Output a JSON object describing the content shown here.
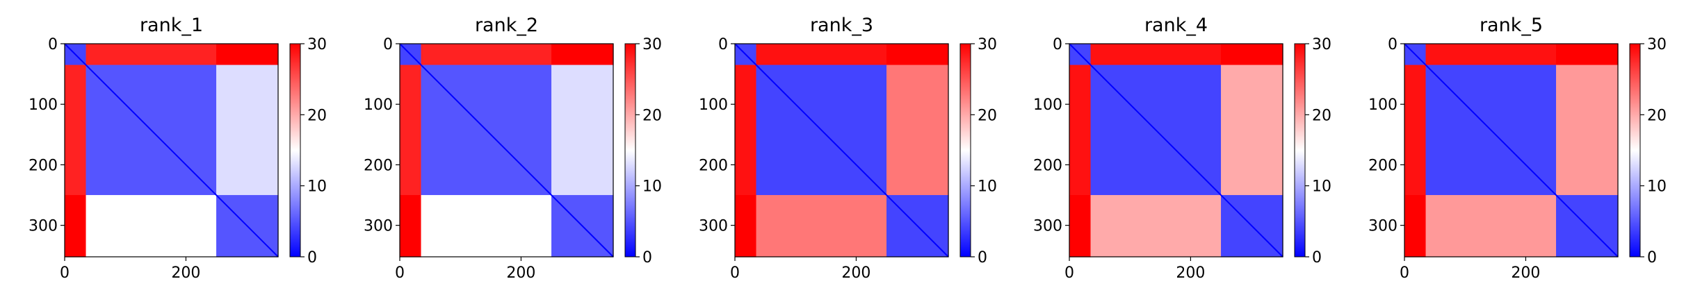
{
  "chart_data": [
    {
      "type": "heatmap",
      "title": "rank_1",
      "xticks": [
        0,
        200
      ],
      "yticks": [
        0,
        100,
        200,
        300
      ],
      "xlim": [
        0,
        352
      ],
      "ylim": [
        352,
        0
      ],
      "colorbar": {
        "ticks": [
          0,
          10,
          20,
          30
        ],
        "range": [
          0,
          30
        ],
        "colormap": "bwr"
      },
      "domains": [
        [
          0,
          35
        ],
        [
          35,
          250
        ],
        [
          250,
          352
        ]
      ],
      "block_values": [
        [
          4,
          28,
          30
        ],
        [
          28,
          5,
          13
        ],
        [
          30,
          15,
          5
        ]
      ]
    },
    {
      "type": "heatmap",
      "title": "rank_2",
      "xticks": [
        0,
        200
      ],
      "yticks": [
        0,
        100,
        200,
        300
      ],
      "xlim": [
        0,
        352
      ],
      "ylim": [
        352,
        0
      ],
      "colorbar": {
        "ticks": [
          0,
          10,
          20,
          30
        ],
        "range": [
          0,
          30
        ],
        "colormap": "bwr"
      },
      "domains": [
        [
          0,
          35
        ],
        [
          35,
          250
        ],
        [
          250,
          352
        ]
      ],
      "block_values": [
        [
          4,
          28,
          30
        ],
        [
          28,
          5,
          13
        ],
        [
          30,
          15,
          5
        ]
      ]
    },
    {
      "type": "heatmap",
      "title": "rank_3",
      "xticks": [
        0,
        200
      ],
      "yticks": [
        0,
        100,
        200,
        300
      ],
      "xlim": [
        0,
        352
      ],
      "ylim": [
        352,
        0
      ],
      "colorbar": {
        "ticks": [
          0,
          10,
          20,
          30
        ],
        "range": [
          0,
          30
        ],
        "colormap": "bwr"
      },
      "domains": [
        [
          0,
          35
        ],
        [
          35,
          250
        ],
        [
          250,
          352
        ]
      ],
      "block_values": [
        [
          4,
          29,
          30
        ],
        [
          29,
          4,
          23
        ],
        [
          30,
          23,
          4
        ]
      ]
    },
    {
      "type": "heatmap",
      "title": "rank_4",
      "xticks": [
        0,
        200
      ],
      "yticks": [
        0,
        100,
        200,
        300
      ],
      "xlim": [
        0,
        352
      ],
      "ylim": [
        352,
        0
      ],
      "colorbar": {
        "ticks": [
          0,
          10,
          20,
          30
        ],
        "range": [
          0,
          30
        ],
        "colormap": "bwr"
      },
      "domains": [
        [
          0,
          35
        ],
        [
          35,
          250
        ],
        [
          250,
          352
        ]
      ],
      "block_values": [
        [
          4,
          29,
          30
        ],
        [
          29,
          4,
          20
        ],
        [
          30,
          20,
          4
        ]
      ]
    },
    {
      "type": "heatmap",
      "title": "rank_5",
      "xticks": [
        0,
        200
      ],
      "yticks": [
        0,
        100,
        200,
        300
      ],
      "xlim": [
        0,
        352
      ],
      "ylim": [
        352,
        0
      ],
      "colorbar": {
        "ticks": [
          0,
          10,
          20,
          30
        ],
        "range": [
          0,
          30
        ],
        "colormap": "bwr"
      },
      "domains": [
        [
          0,
          35
        ],
        [
          35,
          250
        ],
        [
          250,
          352
        ]
      ],
      "block_values": [
        [
          4,
          29,
          30
        ],
        [
          29,
          4,
          21
        ],
        [
          30,
          21,
          4
        ]
      ]
    }
  ]
}
